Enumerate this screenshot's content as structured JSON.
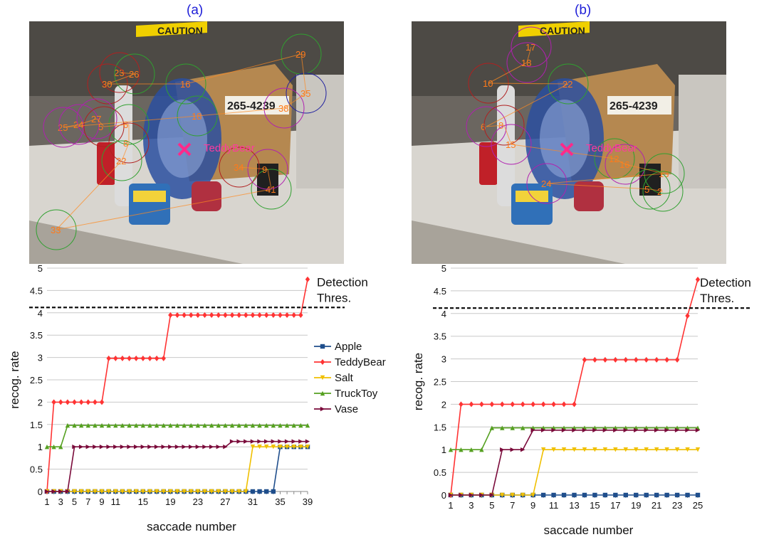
{
  "panels": [
    {
      "label": "(a)",
      "photo": {
        "object_label": "TeddyBear",
        "box_text": "265-4239",
        "sign_text": "CAUTION"
      },
      "fixations": [
        {
          "n": 23,
          "c": "#b02020"
        },
        {
          "n": 26,
          "c": "#30a030"
        },
        {
          "n": 30,
          "c": "#b02020"
        },
        {
          "n": 16,
          "c": "#30a030"
        },
        {
          "n": 29,
          "c": "#30a030"
        },
        {
          "n": 35,
          "c": "#2020a0"
        },
        {
          "n": 38,
          "c": "#b020b0"
        },
        {
          "n": 18,
          "c": "#30a030"
        },
        {
          "n": 25,
          "c": "#b020b0"
        },
        {
          "n": 24,
          "c": "#b020b0"
        },
        {
          "n": 27,
          "c": "#b020b0"
        },
        {
          "n": 5,
          "c": "#b02020"
        },
        {
          "n": 6,
          "c": "#30a030"
        },
        {
          "n": 8,
          "c": "#b02020"
        },
        {
          "n": 22,
          "c": "#30a030"
        },
        {
          "n": 33,
          "c": "#30a030"
        },
        {
          "n": 41,
          "c": "#30a030"
        },
        {
          "n": 9,
          "c": "#b020b0"
        },
        {
          "n": 34,
          "c": "#b02020"
        }
      ],
      "chart_data": {
        "type": "line",
        "x": [
          1,
          2,
          3,
          4,
          5,
          6,
          7,
          8,
          9,
          10,
          11,
          12,
          13,
          14,
          15,
          16,
          17,
          18,
          19,
          20,
          21,
          22,
          23,
          24,
          25,
          26,
          27,
          28,
          29,
          30,
          31,
          32,
          33,
          34,
          35,
          36,
          37,
          38,
          39
        ],
        "xticks": [
          1,
          3,
          5,
          7,
          9,
          11,
          15,
          19,
          23,
          27,
          31,
          35,
          39
        ],
        "ylim": [
          0,
          5
        ],
        "yticks": [
          0,
          0.5,
          1,
          1.5,
          2,
          2.5,
          3,
          3.5,
          4,
          4.5,
          5
        ],
        "xlabel": "saccade number",
        "ylabel": "recog. rate",
        "threshold": {
          "value": 4.12,
          "label_line1": "Detection",
          "label_line2": "Thres."
        },
        "legend": {
          "placement": "right"
        },
        "series": [
          {
            "name": "Apple",
            "color": "#1f4e8c",
            "marker": "square",
            "values": [
              0,
              0,
              0,
              0,
              0,
              0,
              0,
              0,
              0,
              0,
              0,
              0,
              0,
              0,
              0,
              0,
              0,
              0,
              0,
              0,
              0,
              0,
              0,
              0,
              0,
              0,
              0,
              0,
              0,
              0,
              0,
              0,
              0,
              0,
              1,
              1,
              1,
              1,
              1
            ]
          },
          {
            "name": "TeddyBear",
            "color": "#ff3333",
            "marker": "diamond",
            "values": [
              0,
              2,
              2,
              2,
              2,
              2,
              2,
              2,
              2,
              2.98,
              2.98,
              2.98,
              2.98,
              2.98,
              2.98,
              2.98,
              2.98,
              2.98,
              3.95,
              3.95,
              3.95,
              3.95,
              3.95,
              3.95,
              3.95,
              3.95,
              3.95,
              3.95,
              3.95,
              3.95,
              3.95,
              3.95,
              3.95,
              3.95,
              3.95,
              3.95,
              3.95,
              3.95,
              4.75
            ]
          },
          {
            "name": "Salt",
            "color": "#f0c000",
            "marker": "triangle-down",
            "values": [
              0,
              0,
              0,
              0,
              0,
              0,
              0,
              0,
              0,
              0,
              0,
              0,
              0,
              0,
              0,
              0,
              0,
              0,
              0,
              0,
              0,
              0,
              0,
              0,
              0,
              0,
              0,
              0,
              0,
              0,
              1,
              1,
              1,
              1,
              1,
              1,
              1,
              1,
              1
            ]
          },
          {
            "name": "TruckToy",
            "color": "#55a020",
            "marker": "triangle-up",
            "values": [
              1,
              1,
              1,
              1.48,
              1.48,
              1.48,
              1.48,
              1.48,
              1.48,
              1.48,
              1.48,
              1.48,
              1.48,
              1.48,
              1.48,
              1.48,
              1.48,
              1.48,
              1.48,
              1.48,
              1.48,
              1.48,
              1.48,
              1.48,
              1.48,
              1.48,
              1.48,
              1.48,
              1.48,
              1.48,
              1.48,
              1.48,
              1.48,
              1.48,
              1.48,
              1.48,
              1.48,
              1.48,
              1.48
            ]
          },
          {
            "name": "Vase",
            "color": "#7a0a3a",
            "marker": "triangle-right",
            "values": [
              0,
              0,
              0,
              0,
              1,
              1,
              1,
              1,
              1,
              1,
              1,
              1,
              1,
              1,
              1,
              1,
              1,
              1,
              1,
              1,
              1,
              1,
              1,
              1,
              1,
              1,
              1,
              1.12,
              1.12,
              1.12,
              1.12,
              1.12,
              1.12,
              1.12,
              1.12,
              1.12,
              1.12,
              1.12,
              1.12
            ]
          }
        ]
      }
    },
    {
      "label": "(b)",
      "photo": {
        "object_label": "TeddyBear",
        "box_text": "265-4239",
        "sign_text": "CAUTION"
      },
      "fixations": [
        {
          "n": 17,
          "c": "#b020b0"
        },
        {
          "n": 18,
          "c": "#b020b0"
        },
        {
          "n": 10,
          "c": "#b02020"
        },
        {
          "n": 22,
          "c": "#30a030"
        },
        {
          "n": 6,
          "c": "#b020b0"
        },
        {
          "n": 8,
          "c": "#b02020"
        },
        {
          "n": 15,
          "c": "#b020b0"
        },
        {
          "n": 12,
          "c": "#30a030"
        },
        {
          "n": 16,
          "c": "#b020b0"
        },
        {
          "n": 13,
          "c": "#30a030"
        },
        {
          "n": 24,
          "c": "#b020b0"
        },
        {
          "n": 5,
          "c": "#30a030"
        },
        {
          "n": 2,
          "c": "#30a030"
        }
      ],
      "chart_data": {
        "type": "line",
        "x": [
          1,
          2,
          3,
          4,
          5,
          6,
          7,
          8,
          9,
          10,
          11,
          12,
          13,
          14,
          15,
          16,
          17,
          18,
          19,
          20,
          21,
          22,
          23,
          24,
          25
        ],
        "xticks": [
          1,
          3,
          5,
          7,
          9,
          11,
          13,
          15,
          17,
          19,
          21,
          23,
          25
        ],
        "ylim": [
          0,
          5
        ],
        "yticks": [
          0,
          0.5,
          1,
          1.5,
          2,
          2.5,
          3,
          3.5,
          4,
          4.5,
          5
        ],
        "xlabel": "saccade number",
        "ylabel": "recog. rate",
        "threshold": {
          "value": 4.12,
          "label_line1": "Detection",
          "label_line2": "Thres."
        },
        "series": [
          {
            "name": "Apple",
            "color": "#1f4e8c",
            "marker": "square",
            "values": [
              0,
              0,
              0,
              0,
              0,
              0,
              0,
              0,
              0,
              0,
              0,
              0,
              0,
              0,
              0,
              0,
              0,
              0,
              0,
              0,
              0,
              0,
              0,
              0,
              0
            ]
          },
          {
            "name": "TeddyBear",
            "color": "#ff3333",
            "marker": "diamond",
            "values": [
              0,
              2,
              2,
              2,
              2,
              2,
              2,
              2,
              2,
              2,
              2,
              2,
              2,
              2.98,
              2.98,
              2.98,
              2.98,
              2.98,
              2.98,
              2.98,
              2.98,
              2.98,
              2.98,
              3.95,
              4.75
            ]
          },
          {
            "name": "Salt",
            "color": "#f0c000",
            "marker": "triangle-down",
            "values": [
              0,
              0,
              0,
              0,
              0,
              0,
              0,
              0,
              0,
              1,
              1,
              1,
              1,
              1,
              1,
              1,
              1,
              1,
              1,
              1,
              1,
              1,
              1,
              1,
              1
            ]
          },
          {
            "name": "TruckToy",
            "color": "#55a020",
            "marker": "triangle-up",
            "values": [
              1,
              1,
              1,
              1,
              1.48,
              1.48,
              1.48,
              1.48,
              1.48,
              1.48,
              1.48,
              1.48,
              1.48,
              1.48,
              1.48,
              1.48,
              1.48,
              1.48,
              1.48,
              1.48,
              1.48,
              1.48,
              1.48,
              1.48,
              1.48
            ]
          },
          {
            "name": "Vase",
            "color": "#7a0a3a",
            "marker": "triangle-right",
            "values": [
              0,
              0,
              0,
              0,
              0,
              1,
              1,
              1,
              1.43,
              1.43,
              1.43,
              1.43,
              1.43,
              1.43,
              1.43,
              1.43,
              1.43,
              1.43,
              1.43,
              1.43,
              1.43,
              1.43,
              1.43,
              1.43,
              1.43
            ]
          }
        ]
      }
    }
  ]
}
